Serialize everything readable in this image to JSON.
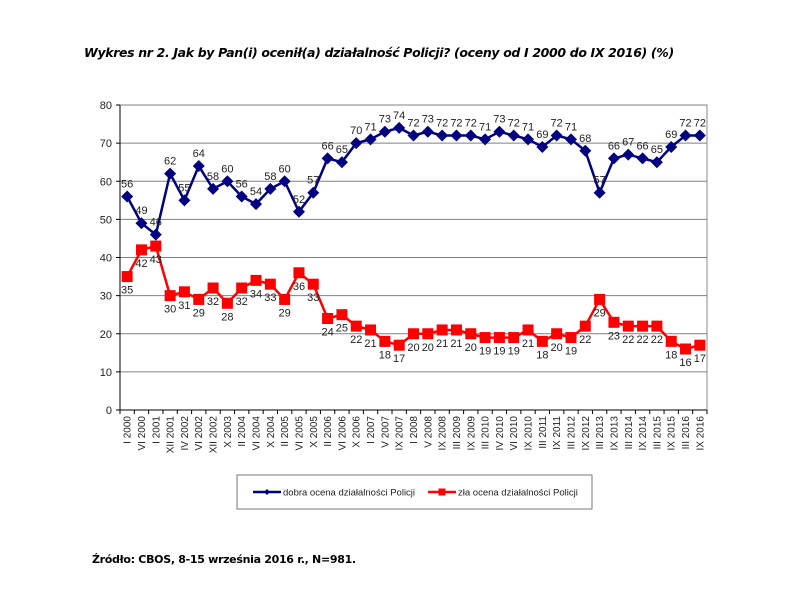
{
  "title": "Wykres nr 2. Jak by Pan(i) ocenił(a) działalność Policji? (oceny od I 2000 do IX 2016) (%)",
  "source": "Źródło: CBOS, 8-15 września 2016 r., N=981.",
  "chart_data": {
    "type": "line",
    "title": "Wykres nr 2. Jak by Pan(i) ocenił(a) działalność Policji? (oceny od I 2000 do IX 2016) (%)",
    "xlabel": "",
    "ylabel": "",
    "ylim": [
      0,
      80
    ],
    "yticks": [
      0,
      10,
      20,
      30,
      40,
      50,
      60,
      70,
      80
    ],
    "grid": true,
    "legend_position": "bottom",
    "categories": [
      "I 2000",
      "VI 2000",
      "I 2001",
      "XII 2001",
      "IV 2002",
      "VI 2002",
      "XII 2002",
      "X 2003",
      "II 2004",
      "VI 2004",
      "X 2004",
      "II 2005",
      "VI 2005",
      "X 2005",
      "II 2006",
      "VI 2006",
      "X 2006",
      "I 2007",
      "V 2007",
      "IX 2007",
      "I 2008",
      "V 2008",
      "IX 2008",
      "III 2009",
      "IX 2009",
      "III 2010",
      "IV 2010",
      "VI 2010",
      "IX 2010",
      "III 2011",
      "IX 2011",
      "III 2012",
      "IX 2012",
      "III 2013",
      "IX 2013",
      "III 2014",
      "IX 2014",
      "III 2015",
      "IX 2015",
      "III 2016",
      "IX 2016"
    ],
    "series": [
      {
        "name": "dobra ocena działalności Policji",
        "color": "#000080",
        "marker": "diamond",
        "label_position": "above",
        "values": [
          56,
          49,
          46,
          62,
          55,
          64,
          58,
          60,
          56,
          54,
          58,
          60,
          52,
          57,
          66,
          65,
          70,
          71,
          73,
          74,
          72,
          73,
          72,
          72,
          72,
          71,
          73,
          72,
          71,
          69,
          72,
          71,
          68,
          57,
          66,
          67,
          66,
          65,
          69,
          72,
          72
        ]
      },
      {
        "name": "zła ocena działalności Policji",
        "color": "#ff0000",
        "marker": "square",
        "label_position": "below",
        "values": [
          35,
          42,
          43,
          30,
          31,
          29,
          32,
          28,
          32,
          34,
          33,
          29,
          36,
          33,
          24,
          25,
          22,
          21,
          18,
          17,
          20,
          20,
          21,
          21,
          20,
          19,
          19,
          19,
          21,
          18,
          20,
          19,
          22,
          29,
          23,
          22,
          22,
          22,
          18,
          16,
          17
        ]
      }
    ]
  }
}
